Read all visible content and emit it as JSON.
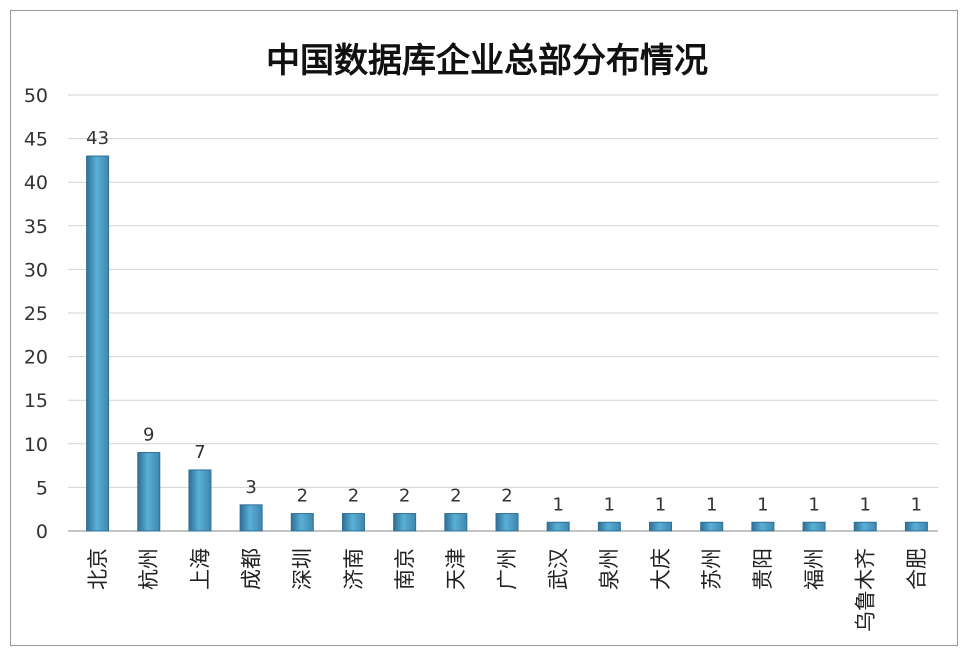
{
  "chart_data": {
    "type": "bar",
    "title": "中国数据库企业总部分布情况",
    "categories": [
      "北京",
      "杭州",
      "上海",
      "成都",
      "深圳",
      "济南",
      "南京",
      "天津",
      "广州",
      "武汉",
      "泉州",
      "大庆",
      "苏州",
      "贵阳",
      "福州",
      "乌鲁木齐",
      "合肥"
    ],
    "values": [
      43,
      9,
      7,
      3,
      2,
      2,
      2,
      2,
      2,
      1,
      1,
      1,
      1,
      1,
      1,
      1,
      1
    ],
    "yticks": [
      0,
      5,
      10,
      15,
      20,
      25,
      30,
      35,
      40,
      45,
      50
    ],
    "ylim": [
      0,
      50
    ],
    "grid": true,
    "legend": "none",
    "bar_color": "#4a9cc6",
    "bar_color_dark": "#2f6f94"
  }
}
